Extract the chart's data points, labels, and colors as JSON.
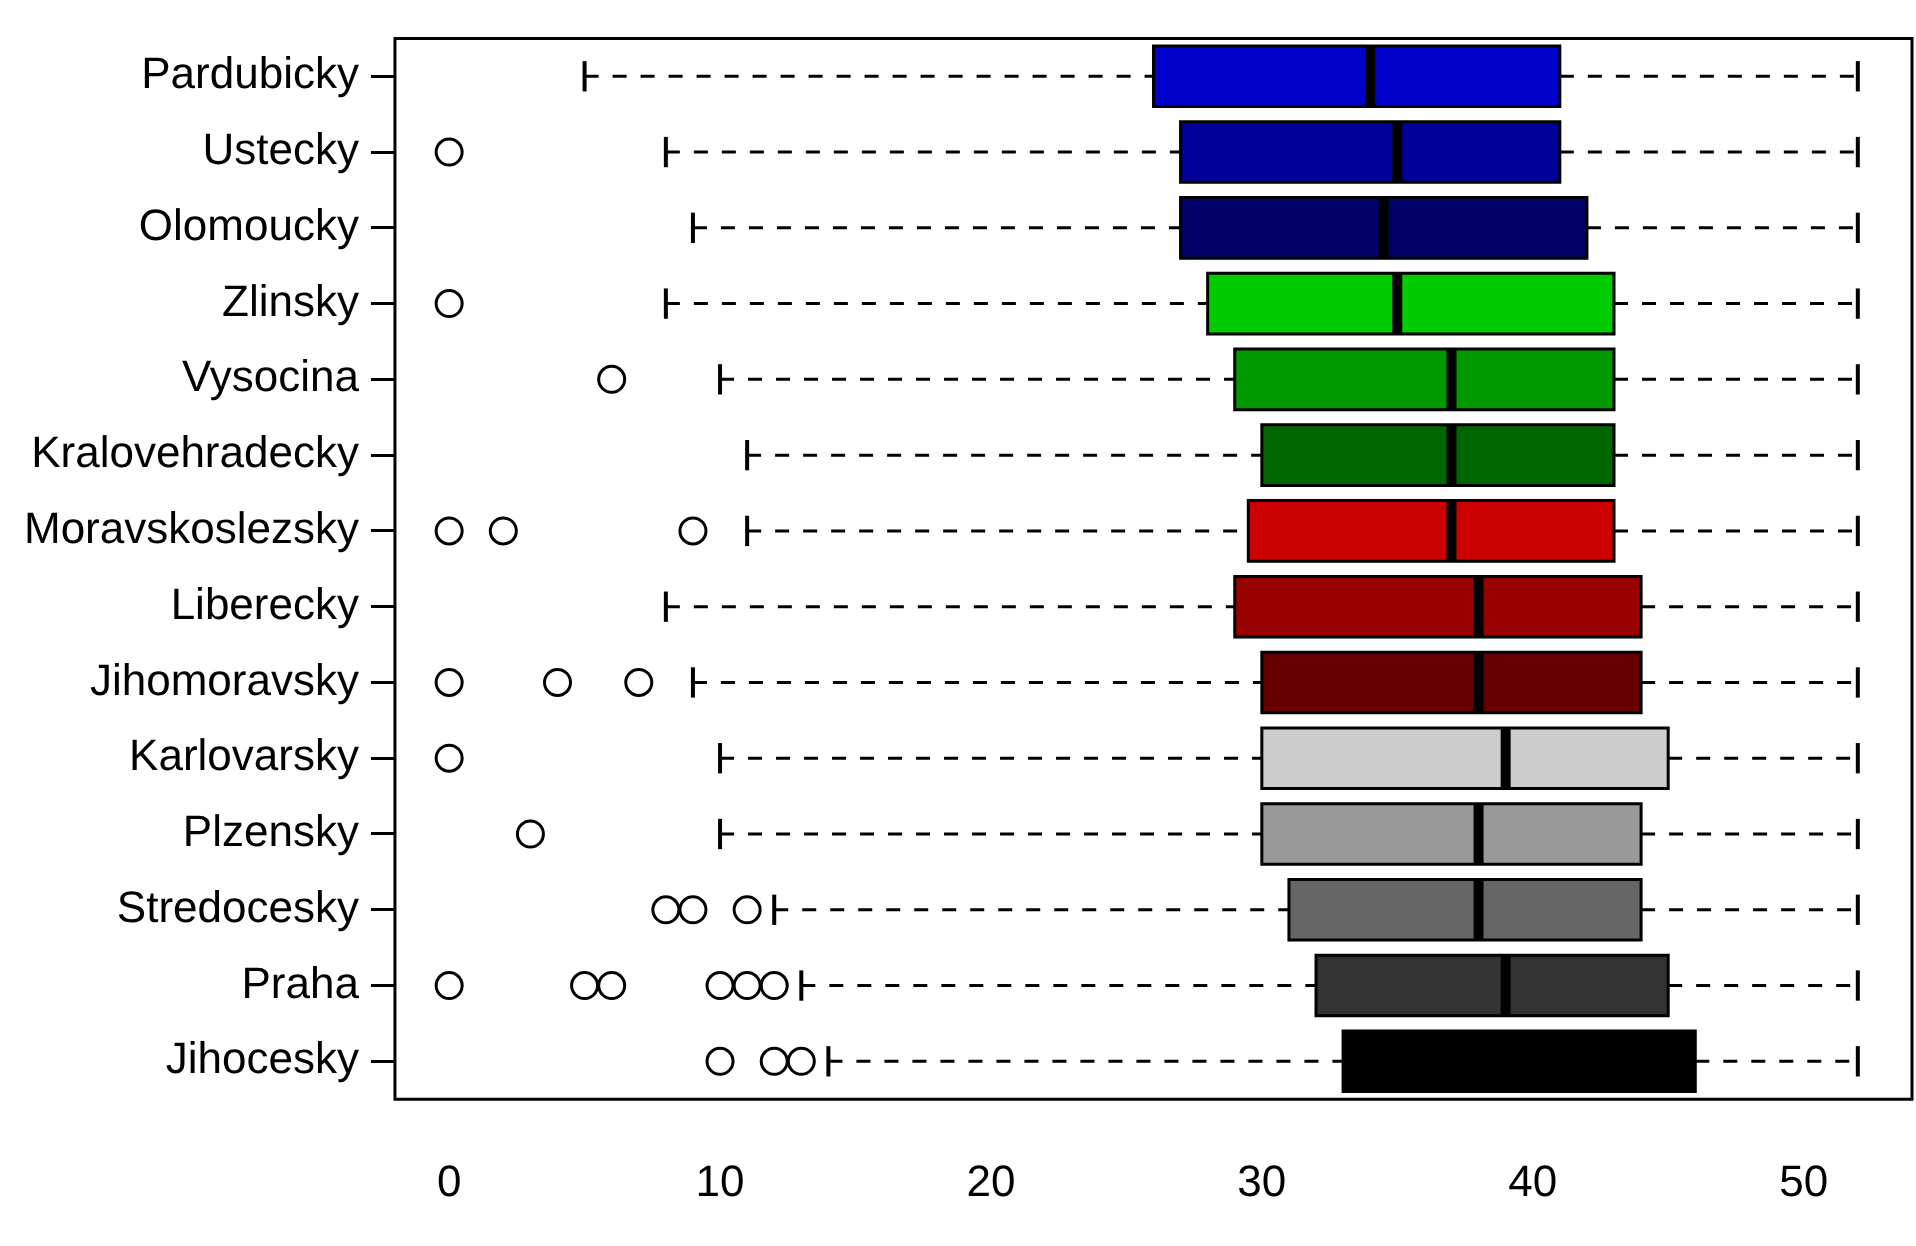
{
  "chart_data": {
    "type": "box",
    "orientation": "horizontal",
    "grid": false,
    "legend": false,
    "categories": [
      "Pardubicky",
      "Ustecky",
      "Olomoucky",
      "Zlinsky",
      "Vysocina",
      "Kralovehradecky",
      "Moravskoslezsky",
      "Liberecky",
      "Jihomoravsky",
      "Karlovarsky",
      "Plzensky",
      "Stredocesky",
      "Praha",
      "Jihocesky"
    ],
    "colors": [
      "#0000cc",
      "#000099",
      "#000066",
      "#00cc00",
      "#009900",
      "#006600",
      "#cc0000",
      "#990000",
      "#660000",
      "#cccccc",
      "#999999",
      "#666666",
      "#333333",
      "#000000"
    ],
    "boxes": [
      {
        "low": 5,
        "q1": 26,
        "median": 34,
        "q3": 41,
        "high": 52
      },
      {
        "low": 8,
        "q1": 27,
        "median": 35,
        "q3": 41,
        "high": 52,
        "outliers": [
          0
        ]
      },
      {
        "low": 9,
        "q1": 27,
        "median": 34.5,
        "q3": 42,
        "high": 52
      },
      {
        "low": 8,
        "q1": 28,
        "median": 35,
        "q3": 43,
        "high": 52,
        "outliers": [
          0
        ]
      },
      {
        "low": 10,
        "q1": 29,
        "median": 37,
        "q3": 43,
        "high": 52,
        "outliers": [
          6
        ]
      },
      {
        "low": 11,
        "q1": 30,
        "median": 37,
        "q3": 43,
        "high": 52
      },
      {
        "low": 11,
        "q1": 29.5,
        "median": 37,
        "q3": 43,
        "high": 52,
        "outliers": [
          0,
          2,
          9
        ]
      },
      {
        "low": 8,
        "q1": 29,
        "median": 38,
        "q3": 44,
        "high": 52
      },
      {
        "low": 9,
        "q1": 30,
        "median": 38,
        "q3": 44,
        "high": 52,
        "outliers": [
          0,
          4,
          7
        ]
      },
      {
        "low": 10,
        "q1": 30,
        "median": 39,
        "q3": 45,
        "high": 52,
        "outliers": [
          0
        ]
      },
      {
        "low": 10,
        "q1": 30,
        "median": 38,
        "q3": 44,
        "high": 52,
        "outliers": [
          3
        ]
      },
      {
        "low": 12,
        "q1": 31,
        "median": 38,
        "q3": 44,
        "high": 52,
        "outliers": [
          8,
          9,
          11
        ]
      },
      {
        "low": 13,
        "q1": 32,
        "median": 39,
        "q3": 45,
        "high": 52,
        "outliers": [
          0,
          5,
          6,
          10,
          11,
          12
        ]
      },
      {
        "low": 14,
        "q1": 33,
        "median": 41,
        "q3": 46,
        "high": 52,
        "outliers": [
          10,
          12,
          13
        ]
      }
    ],
    "xlim": [
      -2,
      54
    ],
    "xticks": [
      0,
      10,
      20,
      30,
      40,
      50
    ]
  }
}
